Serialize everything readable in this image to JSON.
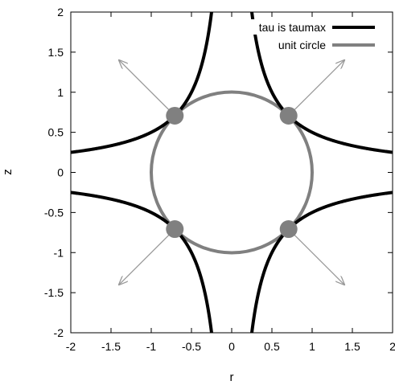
{
  "chart_data": {
    "type": "line",
    "xlabel": "r",
    "ylabel": "z",
    "xlim": [
      -2,
      2
    ],
    "ylim": [
      -2,
      2
    ],
    "xticks": [
      "-2",
      "-1.5",
      "-1",
      "-0.5",
      "0",
      "0.5",
      "1",
      "1.5",
      "2"
    ],
    "yticks": [
      "2",
      "1.5",
      "1",
      "0.5",
      "0",
      "-0.5",
      "-1",
      "-1.5",
      "-2"
    ],
    "grid": false,
    "legend_position": "top-right",
    "series": [
      {
        "name": "tau is taumax",
        "color": "#000000",
        "equation": "|r * z| = 0.5",
        "branches": [
          {
            "x": [
              0.25,
              0.3,
              0.4,
              0.5,
              0.7071,
              1.0,
              1.5,
              2.0
            ],
            "y": [
              2.0,
              1.667,
              1.25,
              1.0,
              0.7071,
              0.5,
              0.333,
              0.25
            ]
          },
          {
            "x": [
              -0.25,
              -0.3,
              -0.4,
              -0.5,
              -0.7071,
              -1.0,
              -1.5,
              -2.0
            ],
            "y": [
              2.0,
              1.667,
              1.25,
              1.0,
              0.7071,
              0.5,
              0.333,
              0.25
            ]
          },
          {
            "x": [
              0.25,
              0.3,
              0.4,
              0.5,
              0.7071,
              1.0,
              1.5,
              2.0
            ],
            "y": [
              -2.0,
              -1.667,
              -1.25,
              -1.0,
              -0.7071,
              -0.5,
              -0.333,
              -0.25
            ]
          },
          {
            "x": [
              -0.25,
              -0.3,
              -0.4,
              -0.5,
              -0.7071,
              -1.0,
              -1.5,
              -2.0
            ],
            "y": [
              -2.0,
              -1.667,
              -1.25,
              -1.0,
              -0.7071,
              -0.5,
              -0.333,
              -0.25
            ]
          }
        ]
      },
      {
        "name": "unit circle",
        "color": "#808080",
        "equation": "r^2 + z^2 = 1",
        "center": [
          0,
          0
        ],
        "radius": 1
      }
    ],
    "points": [
      {
        "x": 0.7071,
        "y": 0.7071
      },
      {
        "x": -0.7071,
        "y": 0.7071
      },
      {
        "x": 0.7071,
        "y": -0.7071
      },
      {
        "x": -0.7071,
        "y": -0.7071
      }
    ],
    "arrows": [
      {
        "from": [
          0.7071,
          0.7071
        ],
        "to": [
          1.4,
          1.4
        ]
      },
      {
        "from": [
          -0.7071,
          0.7071
        ],
        "to": [
          -1.4,
          1.4
        ]
      },
      {
        "from": [
          0.7071,
          -0.7071
        ],
        "to": [
          1.4,
          -1.4
        ]
      },
      {
        "from": [
          -0.7071,
          -0.7071
        ],
        "to": [
          -1.4,
          -1.4
        ]
      }
    ],
    "colors": {
      "point": "#808080",
      "arrow": "#999999",
      "frame": "#000000"
    }
  }
}
